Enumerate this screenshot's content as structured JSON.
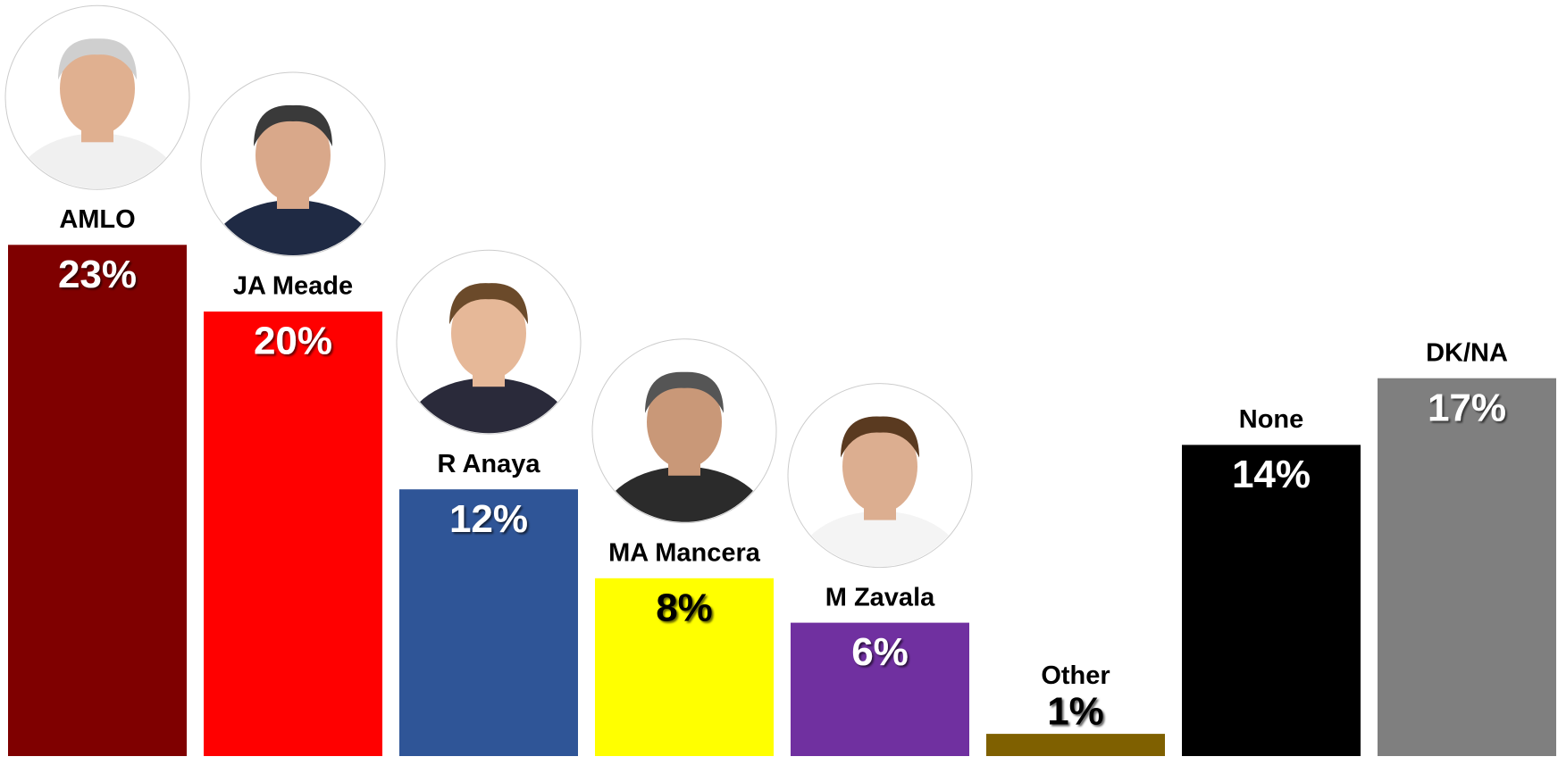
{
  "chart_data": {
    "type": "bar",
    "categories": [
      "AMLO",
      "JA Meade",
      "R Anaya",
      "MA Mancera",
      "M Zavala",
      "Other",
      "None",
      "DK/NA"
    ],
    "values": [
      23,
      20,
      12,
      8,
      6,
      1,
      14,
      17
    ],
    "value_labels": [
      "23%",
      "20%",
      "12%",
      "8%",
      "6%",
      "1%",
      "14%",
      "17%"
    ],
    "colors": [
      "#7f0000",
      "#ff0000",
      "#2f5597",
      "#ffff00",
      "#7030a0",
      "#7f6000",
      "#000000",
      "#7f7f7f"
    ]
  }
}
